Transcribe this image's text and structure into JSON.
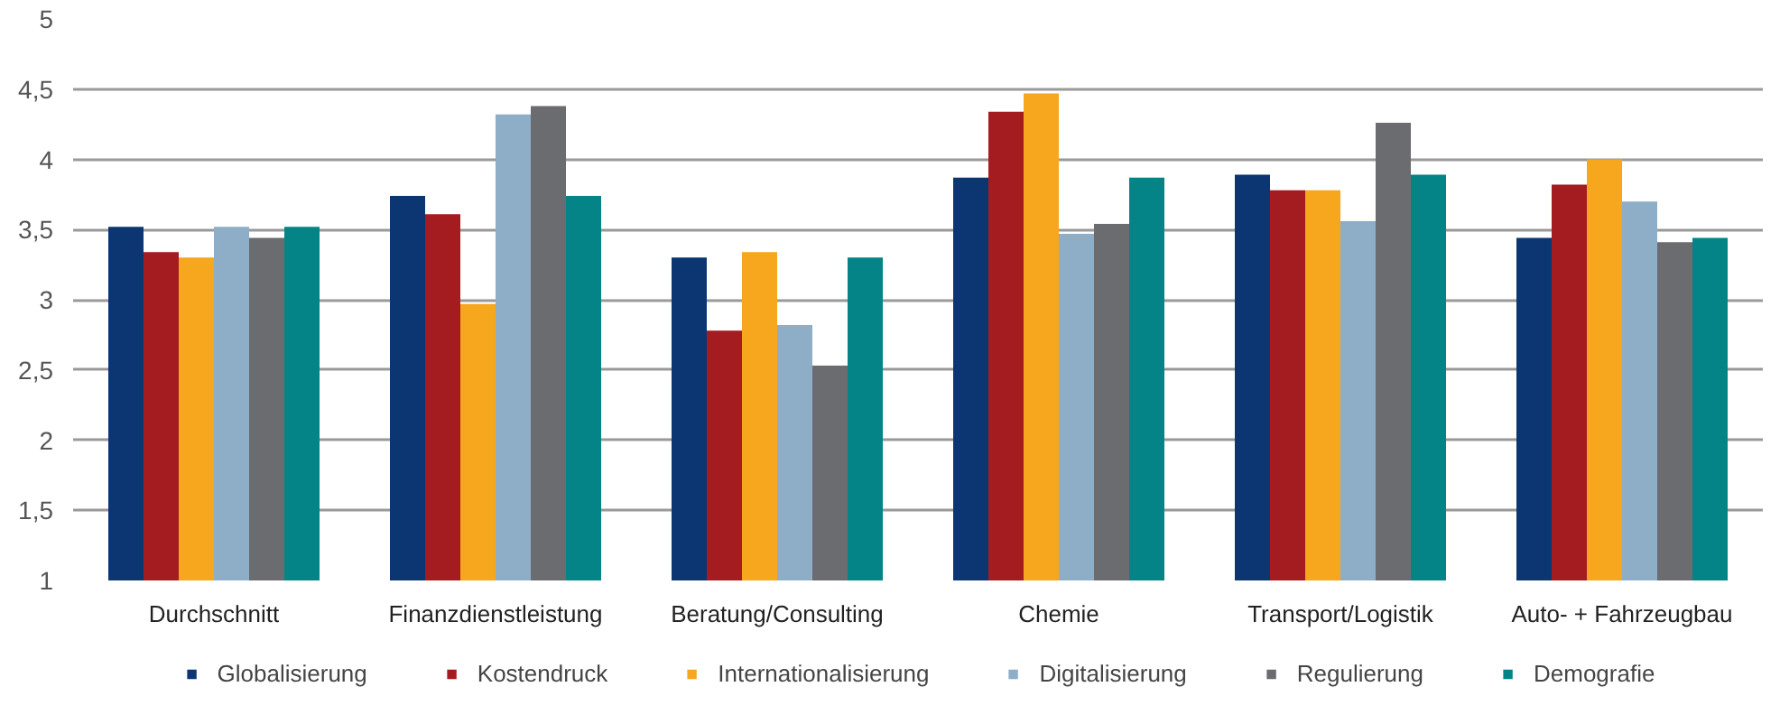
{
  "chart_data": {
    "type": "bar",
    "categories": [
      "Durchschnitt",
      "Finanzdienstleistung",
      "Beratung/Consulting",
      "Chemie",
      "Transport/Logistik",
      "Auto- + Fahrzeugbau"
    ],
    "series": [
      {
        "name": "Globalisierung",
        "color": "#0b3672",
        "values": [
          3.52,
          3.74,
          3.3,
          3.87,
          3.89,
          3.44
        ]
      },
      {
        "name": "Kostendruck",
        "color": "#a51c20",
        "values": [
          3.34,
          3.61,
          2.78,
          4.34,
          3.78,
          3.82
        ]
      },
      {
        "name": "Internationalisierung",
        "color": "#f7a71d",
        "values": [
          3.3,
          2.97,
          3.34,
          4.47,
          3.78,
          4.0
        ]
      },
      {
        "name": "Digitalisierung",
        "color": "#8eadc7",
        "values": [
          3.52,
          4.32,
          2.82,
          3.47,
          3.56,
          3.7
        ]
      },
      {
        "name": "Regulierung",
        "color": "#6b6c70",
        "values": [
          3.44,
          4.38,
          2.53,
          3.54,
          4.26,
          3.41
        ]
      },
      {
        "name": "Demografie",
        "color": "#048486",
        "values": [
          3.52,
          3.74,
          3.3,
          3.87,
          3.89,
          3.44
        ]
      }
    ],
    "ylim": [
      1,
      5
    ],
    "yticks": [
      1,
      {
        "value": 1.5,
        "label": "1,5"
      },
      2,
      {
        "value": 2.5,
        "label": "2,5"
      },
      3,
      {
        "value": 3.5,
        "label": "3,5"
      },
      4,
      {
        "value": 4.5,
        "label": "4,5"
      },
      5
    ],
    "grid": "y",
    "legend": "bottom"
  }
}
